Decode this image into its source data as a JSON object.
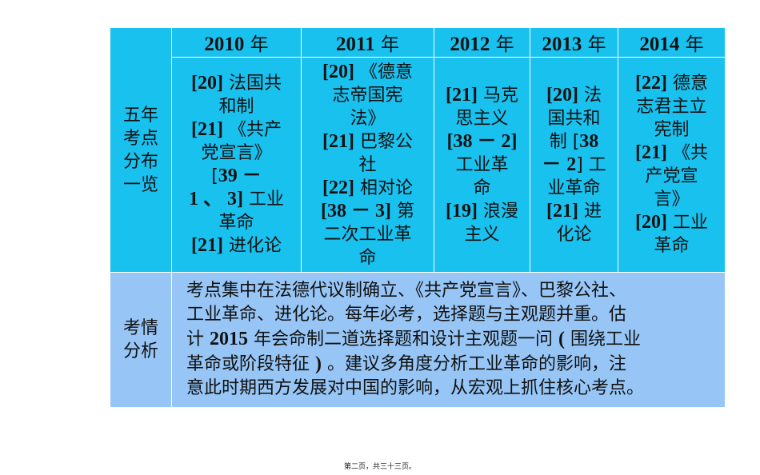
{
  "table": {
    "row_label_1": "五年考点分布一览",
    "row_label_2": "考情分析",
    "years": [
      {
        "year": "2010",
        "suffix": "年"
      },
      {
        "year": "2011",
        "suffix": "年"
      },
      {
        "year": "2012",
        "suffix": "年"
      },
      {
        "year": "2013",
        "suffix": "年"
      },
      {
        "year": "2014",
        "suffix": "年"
      }
    ],
    "cells": [
      [
        "[20] 法国共",
        "和制",
        "[21] 《共产",
        "党宣言》",
        "[39 －",
        "1 、 3] 工业",
        "革命",
        "[21] 进化论"
      ],
      [
        "[20] 《德意",
        "志帝国宪",
        "法》",
        "[21] 巴黎公",
        "社",
        "[22] 相对论",
        "[38 － 3] 第",
        "二次工业革",
        "命"
      ],
      [
        "[21] 马克",
        "思主义",
        "[38 － 2]",
        "工业革",
        "命",
        "[19] 浪漫",
        "主义"
      ],
      [
        "[20] 法",
        "国共和",
        "制 [38",
        "－ 2] 工",
        "业革命",
        "[21] 进",
        "化论"
      ],
      [
        "[22] 德意",
        "志君主立",
        "宪制",
        "[21] 《共",
        "产党宣",
        "言》",
        "[20] 工业",
        "革命"
      ]
    ],
    "analysis_lines": [
      "考点集中在法德代议制确立、《共产党宣言》、巴黎公社、",
      "工业革命、进化论。每年必考，选择题与主观题并重。估",
      "计 2015 年会命制二道选择题和设计主观题一问 ( 围绕工业",
      "革命或阶段特征 ) 。建议多角度分析工业革命的影响，注",
      "意此时期西方发展对中国的影响，从宏观上抓住核心考点。"
    ]
  },
  "footer": "第二页，共三十三页。",
  "colors": {
    "header_cell": "#19c1ef",
    "analysis_cell": "#97c6f6"
  }
}
